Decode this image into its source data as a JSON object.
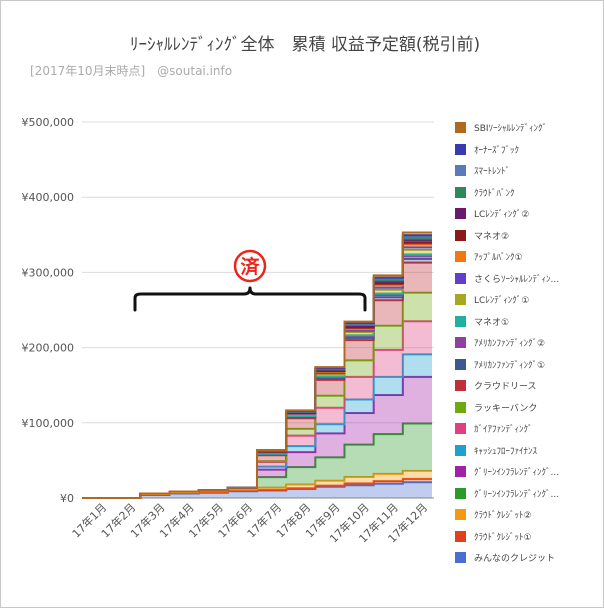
{
  "title": "ﾘｰｼｬﾙﾚﾝﾃﾞｨﾝｸﾞ全体　累積 収益予定額(税引前)",
  "subtitle": "[2017年10月末時点]　@soutai.info",
  "annotation": {
    "stamp": "済",
    "stamp_color": "#e8261c"
  },
  "chart_data": {
    "type": "area",
    "stacked": true,
    "step": true,
    "categories": [
      "17年1月",
      "17年2月",
      "17年3月",
      "17年4月",
      "17年5月",
      "17年6月",
      "17年7月",
      "17年8月",
      "17年9月",
      "17年10月",
      "17年11月",
      "17年12月"
    ],
    "ylim": [
      0,
      500000
    ],
    "yticks": [
      0,
      100000,
      200000,
      300000,
      400000,
      500000
    ],
    "ytick_labels": [
      "¥0",
      "¥100,000",
      "¥200,000",
      "¥300,000",
      "¥400,000",
      "¥500,000"
    ],
    "grid": true,
    "legend_position": "right",
    "series": [
      {
        "name": "みんなのクレジット",
        "color": "#4a6fd0",
        "values": [
          0,
          0,
          4000,
          6000,
          7000,
          9000,
          10000,
          12000,
          15000,
          17000,
          19000,
          21000
        ]
      },
      {
        "name": "ｸﾗｳﾄﾞｸﾚｼﾞｯﾄ①",
        "color": "#e0401c",
        "values": [
          0,
          0,
          500,
          500,
          500,
          600,
          800,
          1000,
          1500,
          2500,
          3500,
          4500
        ]
      },
      {
        "name": "ｸﾗｳﾄﾞｸﾚｼﾞｯﾄ②",
        "color": "#f49a12",
        "values": [
          0,
          0,
          1000,
          1200,
          1500,
          2000,
          3000,
          5000,
          6500,
          8500,
          9500,
          10500
        ]
      },
      {
        "name": "ｸﾞﾘｰﾝｲﾝﾌﾗﾚﾝﾃﾞｨﾝｸﾞ...",
        "color": "#2a9a2a",
        "values": [
          0,
          0,
          500,
          1000,
          1500,
          2000,
          14000,
          23000,
          31000,
          43000,
          53000,
          63000
        ]
      },
      {
        "name": "ｸﾞﾘｰﾝｲﾝﾌﾗﾚﾝﾃﾞｨﾝｸﾞ...",
        "color": "#a020a8",
        "values": [
          0,
          0,
          0,
          0,
          0,
          0,
          10000,
          20000,
          32000,
          42000,
          52000,
          62000
        ]
      },
      {
        "name": "ｷｬｯｼｭﾌﾛｰﾌｧｲﾅﾝｽ",
        "color": "#1fa0d0",
        "values": [
          0,
          0,
          0,
          0,
          0,
          0,
          4000,
          8000,
          12000,
          18000,
          24000,
          30000
        ]
      },
      {
        "name": "ｶﾞｲｱﾌｧﾝﾃﾞｨﾝｸﾞ",
        "color": "#e04080",
        "values": [
          0,
          0,
          0,
          0,
          0,
          0,
          6000,
          14000,
          22000,
          30000,
          36000,
          44000
        ]
      },
      {
        "name": "ラッキーバンク",
        "color": "#70aa10",
        "values": [
          0,
          0,
          0,
          0,
          0,
          0,
          1000,
          9000,
          16000,
          22000,
          32000,
          38000
        ]
      },
      {
        "name": "クラウドリース",
        "color": "#c0303a",
        "values": [
          0,
          0,
          0,
          0,
          0,
          0,
          8000,
          14000,
          21000,
          27000,
          34000,
          40000
        ]
      },
      {
        "name": "ｱﾒﾘｶﾝﾌｧﾝﾃﾞｨﾝｸﾞ①",
        "color": "#3a5a90",
        "values": [
          0,
          0,
          0,
          0,
          0,
          0,
          1000,
          1500,
          2000,
          3000,
          4000,
          5000
        ]
      },
      {
        "name": "ｱﾒﾘｶﾝﾌｧﾝﾃﾞｨﾝｸﾞ②",
        "color": "#9040a0",
        "values": [
          0,
          0,
          0,
          0,
          0,
          0,
          500,
          1000,
          1500,
          2000,
          3000,
          3500
        ]
      },
      {
        "name": "マネオ①",
        "color": "#20b0a0",
        "values": [
          0,
          0,
          0,
          0,
          0,
          0,
          500,
          500,
          1000,
          1500,
          2000,
          2500
        ]
      },
      {
        "name": "LCﾚﾝﾃﾞｨﾝｸﾞ①",
        "color": "#a8a820",
        "values": [
          0,
          0,
          0,
          0,
          0,
          0,
          1000,
          1500,
          3000,
          4000,
          5000,
          6000
        ]
      },
      {
        "name": "さくらｿｰｼｬﾙﾚﾝﾃﾞｨﾝ...",
        "color": "#6040c8",
        "values": [
          0,
          0,
          0,
          0,
          0,
          0,
          500,
          1000,
          1500,
          2000,
          3000,
          3500
        ]
      },
      {
        "name": "ｱｯﾌﾟﾙﾊﾞﾝｸ①",
        "color": "#f07a10",
        "values": [
          0,
          0,
          0,
          0,
          0,
          0,
          500,
          1000,
          1500,
          2500,
          3000,
          3500
        ]
      },
      {
        "name": "マネオ②",
        "color": "#8a1a1a",
        "values": [
          0,
          0,
          0,
          0,
          0,
          0,
          500,
          500,
          1000,
          1500,
          2000,
          2500
        ]
      },
      {
        "name": "LCﾚﾝﾃﾞｨﾝｸﾞ②",
        "color": "#6a1a6a",
        "values": [
          0,
          0,
          0,
          0,
          0,
          0,
          500,
          1000,
          1500,
          2000,
          2500,
          3000
        ]
      },
      {
        "name": "ｸﾗｳﾄﾞﾊﾞﾝｸ",
        "color": "#2a8a5a",
        "values": [
          0,
          0,
          0,
          0,
          0,
          0,
          500,
          500,
          1000,
          1500,
          2000,
          2500
        ]
      },
      {
        "name": "ｽﾏｰﾄﾚﾝﾄﾞ",
        "color": "#5a7ab8",
        "values": [
          0,
          0,
          0,
          0,
          0,
          0,
          500,
          500,
          1000,
          1500,
          2000,
          2500
        ]
      },
      {
        "name": "ｵｰﾅｰｽﾞﾌﾞｯｸ",
        "color": "#3a3ab0",
        "values": [
          0,
          0,
          0,
          0,
          0,
          0,
          500,
          500,
          500,
          1000,
          1500,
          2000
        ]
      },
      {
        "name": "SBIｿｰｼｬﾙﾚﾝﾃﾞｨﾝｸﾞ",
        "color": "#b06a20",
        "values": [
          0,
          0,
          0,
          0,
          0,
          0,
          500,
          1000,
          1500,
          2000,
          3000,
          3500
        ]
      }
    ]
  }
}
